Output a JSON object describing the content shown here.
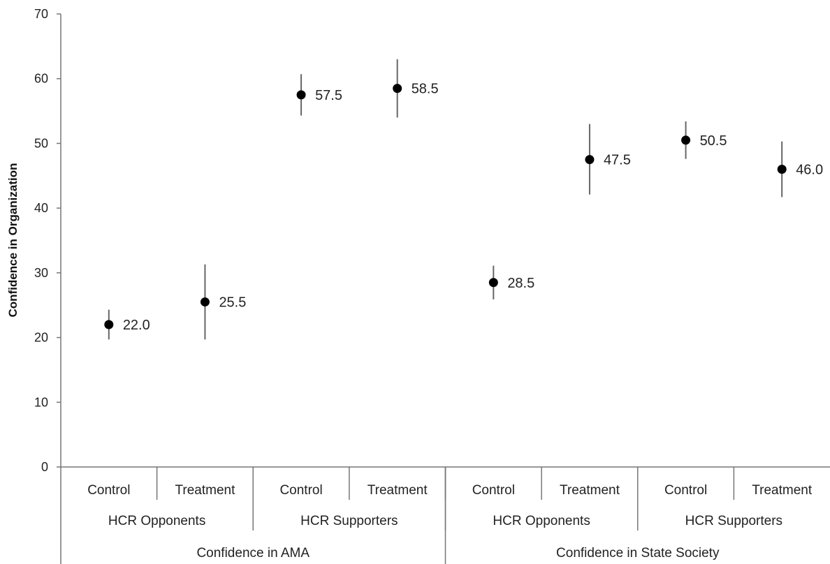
{
  "chart_data": {
    "type": "scatter",
    "title": "",
    "ylabel": "Confidence in Organization",
    "xlabel": "",
    "ylim": [
      0,
      70
    ],
    "yticks": [
      0,
      10,
      20,
      30,
      40,
      50,
      60,
      70
    ],
    "grid": false,
    "legend": "none",
    "group_levels": {
      "outer": [
        "Confidence in AMA",
        "Confidence in State Society"
      ],
      "middle": [
        "HCR Opponents",
        "HCR Supporters",
        "HCR Opponents",
        "HCR Supporters"
      ],
      "inner": [
        "Control",
        "Treatment",
        "Control",
        "Treatment",
        "Control",
        "Treatment",
        "Control",
        "Treatment"
      ]
    },
    "points": [
      {
        "outer": "Confidence in AMA",
        "group": "HCR Opponents",
        "condition": "Control",
        "value": 22.0,
        "label": "22.0",
        "ci_low": 19.7,
        "ci_high": 24.3
      },
      {
        "outer": "Confidence in AMA",
        "group": "HCR Opponents",
        "condition": "Treatment",
        "value": 25.5,
        "label": "25.5",
        "ci_low": 19.7,
        "ci_high": 31.3
      },
      {
        "outer": "Confidence in AMA",
        "group": "HCR Supporters",
        "condition": "Control",
        "value": 57.5,
        "label": "57.5",
        "ci_low": 54.3,
        "ci_high": 60.7
      },
      {
        "outer": "Confidence in AMA",
        "group": "HCR Supporters",
        "condition": "Treatment",
        "value": 58.5,
        "label": "58.5",
        "ci_low": 54.0,
        "ci_high": 63.0
      },
      {
        "outer": "Confidence in State Society",
        "group": "HCR Opponents",
        "condition": "Control",
        "value": 28.5,
        "label": "28.5",
        "ci_low": 25.9,
        "ci_high": 31.1
      },
      {
        "outer": "Confidence in State Society",
        "group": "HCR Opponents",
        "condition": "Treatment",
        "value": 47.5,
        "label": "47.5",
        "ci_low": 42.1,
        "ci_high": 53.0
      },
      {
        "outer": "Confidence in State Society",
        "group": "HCR Supporters",
        "condition": "Control",
        "value": 50.5,
        "label": "50.5",
        "ci_low": 47.6,
        "ci_high": 53.4
      },
      {
        "outer": "Confidence in State Society",
        "group": "HCR Supporters",
        "condition": "Treatment",
        "value": 46.0,
        "label": "46.0",
        "ci_low": 41.7,
        "ci_high": 50.3
      }
    ]
  }
}
